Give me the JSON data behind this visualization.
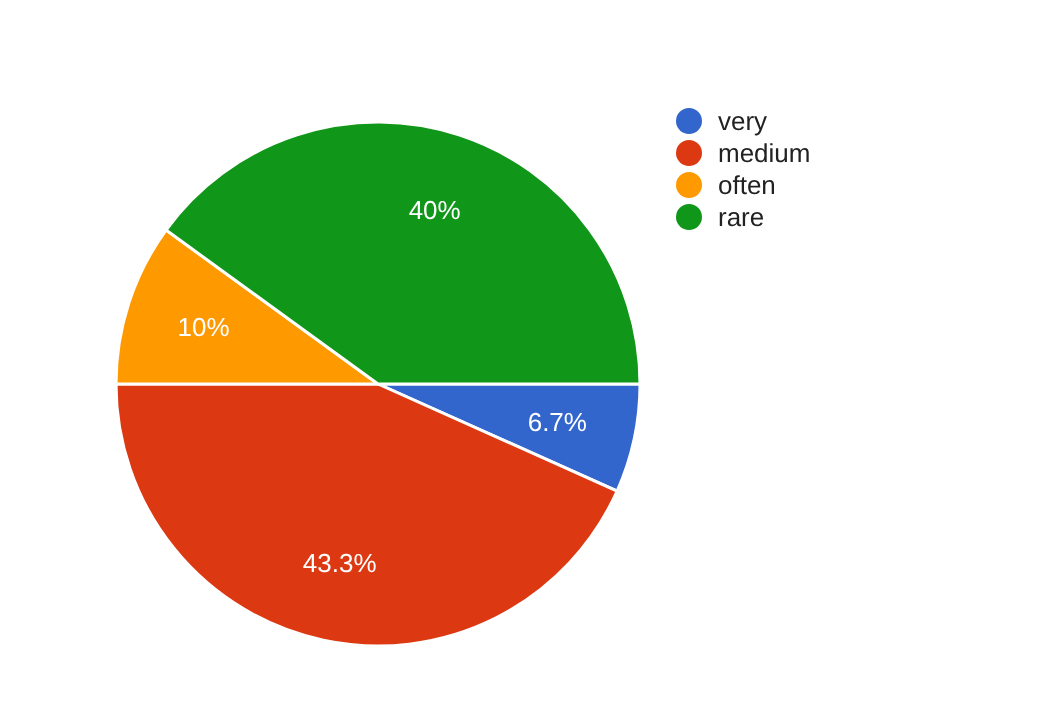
{
  "chart_data": {
    "type": "pie",
    "categories": [
      "very",
      "medium",
      "often",
      "rare"
    ],
    "values": [
      6.7,
      43.3,
      10,
      40
    ],
    "colors": [
      "#3366cc",
      "#dc3912",
      "#ff9900",
      "#109618"
    ],
    "value_labels": [
      "6.7%",
      "43.3%",
      "10%",
      "40%"
    ],
    "legend": "top right"
  }
}
